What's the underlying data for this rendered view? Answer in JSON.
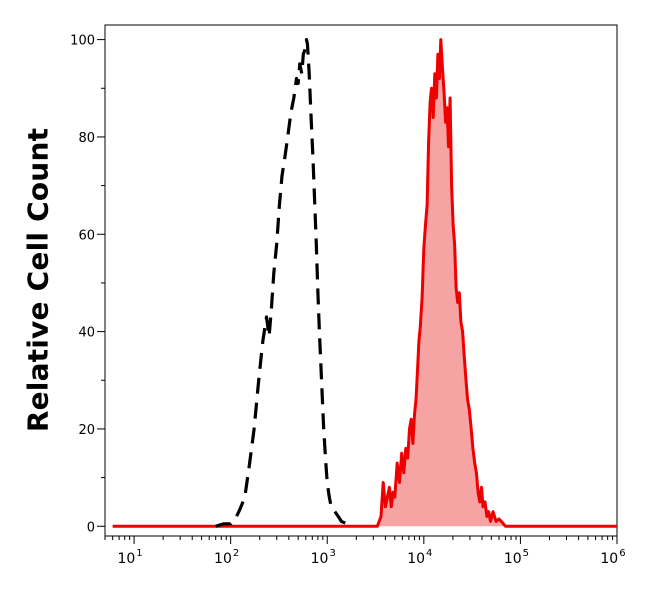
{
  "chart_data": {
    "type": "area",
    "title": "",
    "xlabel": "",
    "ylabel": "Relative Cell Count",
    "xscale": "log",
    "xlim": [
      5,
      1000000
    ],
    "ylim": [
      -2,
      103
    ],
    "grid": false,
    "y_ticks": [
      {
        "value": 0,
        "label": "0"
      },
      {
        "value": 20,
        "label": "20"
      },
      {
        "value": 40,
        "label": "40"
      },
      {
        "value": 60,
        "label": "60"
      },
      {
        "value": 80,
        "label": "80"
      },
      {
        "value": 100,
        "label": "100"
      }
    ],
    "x_ticks": [
      {
        "value": 10,
        "base": "10",
        "exp": "1"
      },
      {
        "value": 100,
        "base": "10",
        "exp": "2"
      },
      {
        "value": 1000,
        "base": "10",
        "exp": "3"
      },
      {
        "value": 10000,
        "base": "10",
        "exp": "4"
      },
      {
        "value": 100000,
        "base": "10",
        "exp": "5"
      },
      {
        "value": 1000000,
        "base": "10",
        "exp": "6"
      }
    ],
    "series": [
      {
        "style": "dashed",
        "color": "#000000",
        "fill": "none",
        "points": [
          [
            70,
            0
          ],
          [
            85,
            0.5
          ],
          [
            100,
            0.5
          ],
          [
            115,
            2
          ],
          [
            125,
            3.5
          ],
          [
            140,
            6
          ],
          [
            155,
            12
          ],
          [
            175,
            20
          ],
          [
            195,
            30
          ],
          [
            215,
            38
          ],
          [
            235,
            43
          ],
          [
            250,
            39
          ],
          [
            265,
            45
          ],
          [
            280,
            52
          ],
          [
            300,
            58
          ],
          [
            320,
            66
          ],
          [
            340,
            72
          ],
          [
            365,
            76
          ],
          [
            390,
            80
          ],
          [
            420,
            85
          ],
          [
            450,
            88
          ],
          [
            480,
            92
          ],
          [
            500,
            91
          ],
          [
            520,
            95
          ],
          [
            545,
            93
          ],
          [
            565,
            97
          ],
          [
            590,
            98
          ],
          [
            610,
            100
          ],
          [
            625,
            99
          ],
          [
            650,
            93
          ],
          [
            680,
            84
          ],
          [
            710,
            76
          ],
          [
            740,
            67
          ],
          [
            770,
            58
          ],
          [
            800,
            48
          ],
          [
            830,
            40
          ],
          [
            860,
            33
          ],
          [
            890,
            26
          ],
          [
            920,
            20
          ],
          [
            960,
            14
          ],
          [
            1000,
            9
          ],
          [
            1050,
            6
          ],
          [
            1100,
            4
          ],
          [
            1200,
            3
          ],
          [
            1300,
            2
          ],
          [
            1400,
            1
          ],
          [
            1600,
            0.5
          ]
        ]
      },
      {
        "style": "solid",
        "color": "#ee0000",
        "fill": "#f5a3a3",
        "points": [
          [
            6,
            0
          ],
          [
            100,
            0
          ],
          [
            1000,
            0
          ],
          [
            3300,
            0
          ],
          [
            3600,
            2
          ],
          [
            3800,
            9
          ],
          [
            4000,
            4
          ],
          [
            4200,
            6
          ],
          [
            4400,
            8
          ],
          [
            4600,
            4
          ],
          [
            4800,
            7
          ],
          [
            5000,
            6
          ],
          [
            5300,
            13
          ],
          [
            5600,
            9
          ],
          [
            5900,
            15
          ],
          [
            6200,
            11
          ],
          [
            6500,
            16
          ],
          [
            6800,
            14
          ],
          [
            7100,
            20
          ],
          [
            7400,
            22
          ],
          [
            7700,
            17
          ],
          [
            8000,
            23
          ],
          [
            8300,
            26
          ],
          [
            8600,
            32
          ],
          [
            8900,
            38
          ],
          [
            9200,
            41
          ],
          [
            9600,
            47
          ],
          [
            10000,
            57
          ],
          [
            10400,
            62
          ],
          [
            10800,
            66
          ],
          [
            11200,
            79
          ],
          [
            11600,
            87
          ],
          [
            12000,
            90
          ],
          [
            12500,
            84
          ],
          [
            13000,
            93
          ],
          [
            13500,
            88
          ],
          [
            14000,
            97
          ],
          [
            14500,
            92
          ],
          [
            15000,
            100
          ],
          [
            15600,
            94
          ],
          [
            16200,
            89
          ],
          [
            16800,
            83
          ],
          [
            17400,
            86
          ],
          [
            18000,
            78
          ],
          [
            18700,
            88
          ],
          [
            19400,
            70
          ],
          [
            20100,
            62
          ],
          [
            20800,
            58
          ],
          [
            21600,
            49
          ],
          [
            22400,
            46
          ],
          [
            23300,
            48
          ],
          [
            24200,
            42
          ],
          [
            25200,
            40
          ],
          [
            26200,
            35
          ],
          [
            27300,
            30
          ],
          [
            28400,
            26
          ],
          [
            29600,
            24
          ],
          [
            30900,
            20
          ],
          [
            32200,
            16
          ],
          [
            33600,
            13
          ],
          [
            35000,
            11
          ],
          [
            36500,
            7
          ],
          [
            38000,
            5
          ],
          [
            39500,
            8
          ],
          [
            41000,
            4
          ],
          [
            43000,
            5
          ],
          [
            45000,
            2
          ],
          [
            47000,
            3
          ],
          [
            49000,
            1
          ],
          [
            52000,
            3
          ],
          [
            56000,
            1
          ],
          [
            60000,
            1.5
          ],
          [
            65000,
            0.8
          ],
          [
            70000,
            0
          ],
          [
            100000,
            0
          ],
          [
            1000000,
            0
          ]
        ]
      }
    ]
  }
}
